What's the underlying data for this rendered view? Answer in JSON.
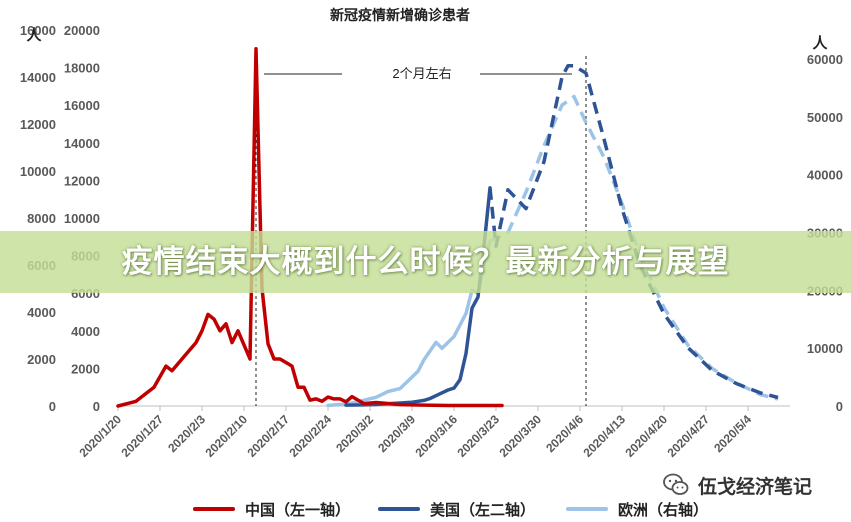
{
  "chart_data": {
    "type": "line",
    "title": "新冠疫情新增确诊患者",
    "axis_unit_left": "人",
    "axis_unit_right": "人",
    "annotation": "2个月左右",
    "x_ticks": [
      "2020/1/20",
      "2020/1/27",
      "2020/2/3",
      "2020/2/10",
      "2020/2/17",
      "2020/2/24",
      "2020/3/2",
      "2020/3/9",
      "2020/3/16",
      "2020/3/23",
      "2020/3/30",
      "2020/4/6",
      "2020/4/13",
      "2020/4/20",
      "2020/4/27",
      "2020/5/4"
    ],
    "y_left_outer": {
      "ticks": [
        0,
        2000,
        4000,
        6000,
        8000,
        10000,
        12000,
        14000,
        16000
      ],
      "range": [
        0,
        16000
      ]
    },
    "y_left_inner": {
      "ticks": [
        0,
        2000,
        4000,
        6000,
        8000,
        10000,
        12000,
        14000,
        16000,
        18000,
        20000
      ],
      "range": [
        0,
        20000
      ]
    },
    "y_right": {
      "ticks": [
        0,
        10000,
        20000,
        30000,
        40000,
        50000,
        60000
      ],
      "range": [
        0,
        65000
      ]
    },
    "vlines": [
      "2020/2/12",
      "2020/4/7"
    ],
    "series": [
      {
        "name": "中国（左一轴）",
        "axis": "left_outer",
        "color": "#c00000",
        "style": "solid",
        "x": [
          "2020/1/20",
          "2020/1/23",
          "2020/1/26",
          "2020/1/28",
          "2020/1/29",
          "2020/1/31",
          "2020/2/2",
          "2020/2/3",
          "2020/2/4",
          "2020/2/5",
          "2020/2/6",
          "2020/2/7",
          "2020/2/8",
          "2020/2/9",
          "2020/2/10",
          "2020/2/11",
          "2020/2/12",
          "2020/2/13",
          "2020/2/14",
          "2020/2/15",
          "2020/2/16",
          "2020/2/17",
          "2020/2/18",
          "2020/2/19",
          "2020/2/20",
          "2020/2/21",
          "2020/2/22",
          "2020/2/23",
          "2020/2/24",
          "2020/2/25",
          "2020/2/26",
          "2020/2/27",
          "2020/2/28",
          "2020/3/1",
          "2020/3/3",
          "2020/3/7",
          "2020/3/11",
          "2020/3/15",
          "2020/3/24"
        ],
        "y": [
          0,
          200,
          800,
          1700,
          1500,
          2100,
          2700,
          3200,
          3900,
          3700,
          3200,
          3500,
          2700,
          3200,
          2600,
          2000,
          15200,
          5000,
          2650,
          2000,
          2000,
          1850,
          1700,
          800,
          800,
          250,
          300,
          200,
          380,
          300,
          300,
          180,
          400,
          100,
          150,
          60,
          40,
          20,
          20
        ]
      },
      {
        "name": "美国（左二轴）",
        "axis": "left_inner",
        "color": "#2f5496",
        "style": "solid",
        "solid_x": [
          "2020/2/27",
          "2020/3/1",
          "2020/3/3",
          "2020/3/5",
          "2020/3/7",
          "2020/3/9",
          "2020/3/10",
          "2020/3/11",
          "2020/3/12",
          "2020/3/13",
          "2020/3/14",
          "2020/3/15",
          "2020/3/16",
          "2020/3/17",
          "2020/3/18",
          "2020/3/19",
          "2020/3/20",
          "2020/3/21",
          "2020/3/22"
        ],
        "solid_y": [
          50,
          60,
          80,
          120,
          160,
          200,
          250,
          300,
          400,
          550,
          700,
          850,
          950,
          1400,
          2800,
          5200,
          5800,
          8500,
          11600
        ],
        "dashed_x": [
          "2020/3/22",
          "2020/3/23",
          "2020/3/25",
          "2020/3/28",
          "2020/3/31",
          "2020/4/3",
          "2020/4/4",
          "2020/4/5",
          "2020/4/7",
          "2020/4/10",
          "2020/4/13",
          "2020/4/16",
          "2020/4/20",
          "2020/4/24",
          "2020/4/28",
          "2020/5/2",
          "2020/5/6",
          "2020/5/9"
        ],
        "dashed_y": [
          11600,
          8500,
          11500,
          10500,
          13000,
          17500,
          18100,
          18100,
          17700,
          14200,
          10500,
          7500,
          4900,
          3100,
          1900,
          1200,
          700,
          450
        ]
      },
      {
        "name": "欧洲（右轴）",
        "axis": "right",
        "color": "#9dc3e6",
        "style": "solid",
        "solid_x": [
          "2020/2/24",
          "2020/2/27",
          "2020/3/1",
          "2020/3/3",
          "2020/3/5",
          "2020/3/7",
          "2020/3/8",
          "2020/3/9",
          "2020/3/10",
          "2020/3/11",
          "2020/3/12",
          "2020/3/13",
          "2020/3/14",
          "2020/3/15",
          "2020/3/16",
          "2020/3/17",
          "2020/3/18",
          "2020/3/19",
          "2020/3/20",
          "2020/3/21",
          "2020/3/22"
        ],
        "solid_y": [
          100,
          300,
          1000,
          1500,
          2500,
          3000,
          4000,
          5000,
          6000,
          8000,
          9500,
          11000,
          10000,
          11000,
          12000,
          14000,
          16000,
          20000,
          19500,
          24500,
          28500
        ],
        "dashed_x": [
          "2020/3/22",
          "2020/3/25",
          "2020/3/28",
          "2020/3/31",
          "2020/4/3",
          "2020/4/5",
          "2020/4/7",
          "2020/4/10",
          "2020/4/13",
          "2020/4/16",
          "2020/4/20",
          "2020/4/24",
          "2020/4/28",
          "2020/5/2",
          "2020/5/6",
          "2020/5/9"
        ],
        "dashed_y": [
          28500,
          30000,
          37000,
          45000,
          52000,
          53500,
          49000,
          43000,
          35000,
          26000,
          17000,
          10500,
          6500,
          4000,
          2000,
          1200
        ]
      }
    ]
  },
  "legend": [
    {
      "label": "中国（左一轴）",
      "color": "#c00000"
    },
    {
      "label": "美国（左二轴）",
      "color": "#2f5496"
    },
    {
      "label": "欧洲（右轴）",
      "color": "#9dc3e6"
    }
  ],
  "banner": {
    "text": "疫情结束大概到什么时候？最新分析与展望"
  },
  "watermark": {
    "text": "伍戈经济笔记",
    "icon": "wechat-icon"
  }
}
